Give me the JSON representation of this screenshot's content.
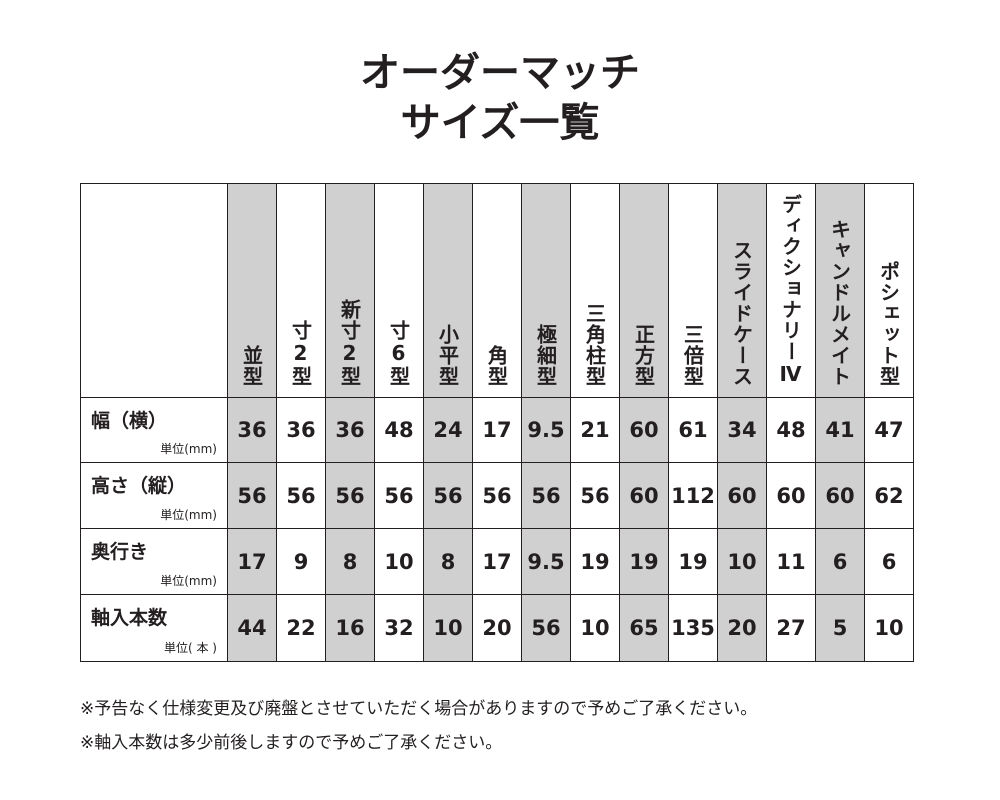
{
  "header": {
    "title": [
      "オーダーマッチ",
      "サイズ一覧"
    ]
  },
  "table": {
    "columns": [
      "並型",
      "寸2型",
      "新寸2型",
      "寸6型",
      "小平型",
      "角型",
      "極細型",
      "三角柱型",
      "正方型",
      "三倍型",
      "スライドケース",
      "ディクショナリーⅣ",
      "キャンドルメイト",
      "ポシェット型"
    ],
    "rows": [
      {
        "label": "幅（横）",
        "unit": "単位(mm)",
        "values": [
          36,
          36,
          36,
          48,
          24,
          17,
          9.5,
          21,
          60,
          61,
          34,
          48,
          41,
          47
        ]
      },
      {
        "label": "高さ（縦）",
        "unit": "単位(mm)",
        "values": [
          56,
          56,
          56,
          56,
          56,
          56,
          56,
          56,
          60,
          112,
          60,
          60,
          60,
          62
        ]
      },
      {
        "label": "奥行き",
        "unit": "単位(mm)",
        "values": [
          17,
          9,
          8,
          10,
          8,
          17,
          9.5,
          19,
          19,
          19,
          10,
          11,
          6,
          6
        ]
      },
      {
        "label": "軸入本数",
        "unit": "単位( 本 )",
        "values": [
          44,
          22,
          16,
          32,
          10,
          20,
          56,
          10,
          65,
          135,
          20,
          27,
          5,
          10
        ]
      }
    ]
  },
  "notes": [
    "※予告なく仕様変更及び廃盤とさせていただく場合がありますので予めご了承ください。",
    "※軸入本数は多少前後しますので予めご了承ください。"
  ]
}
